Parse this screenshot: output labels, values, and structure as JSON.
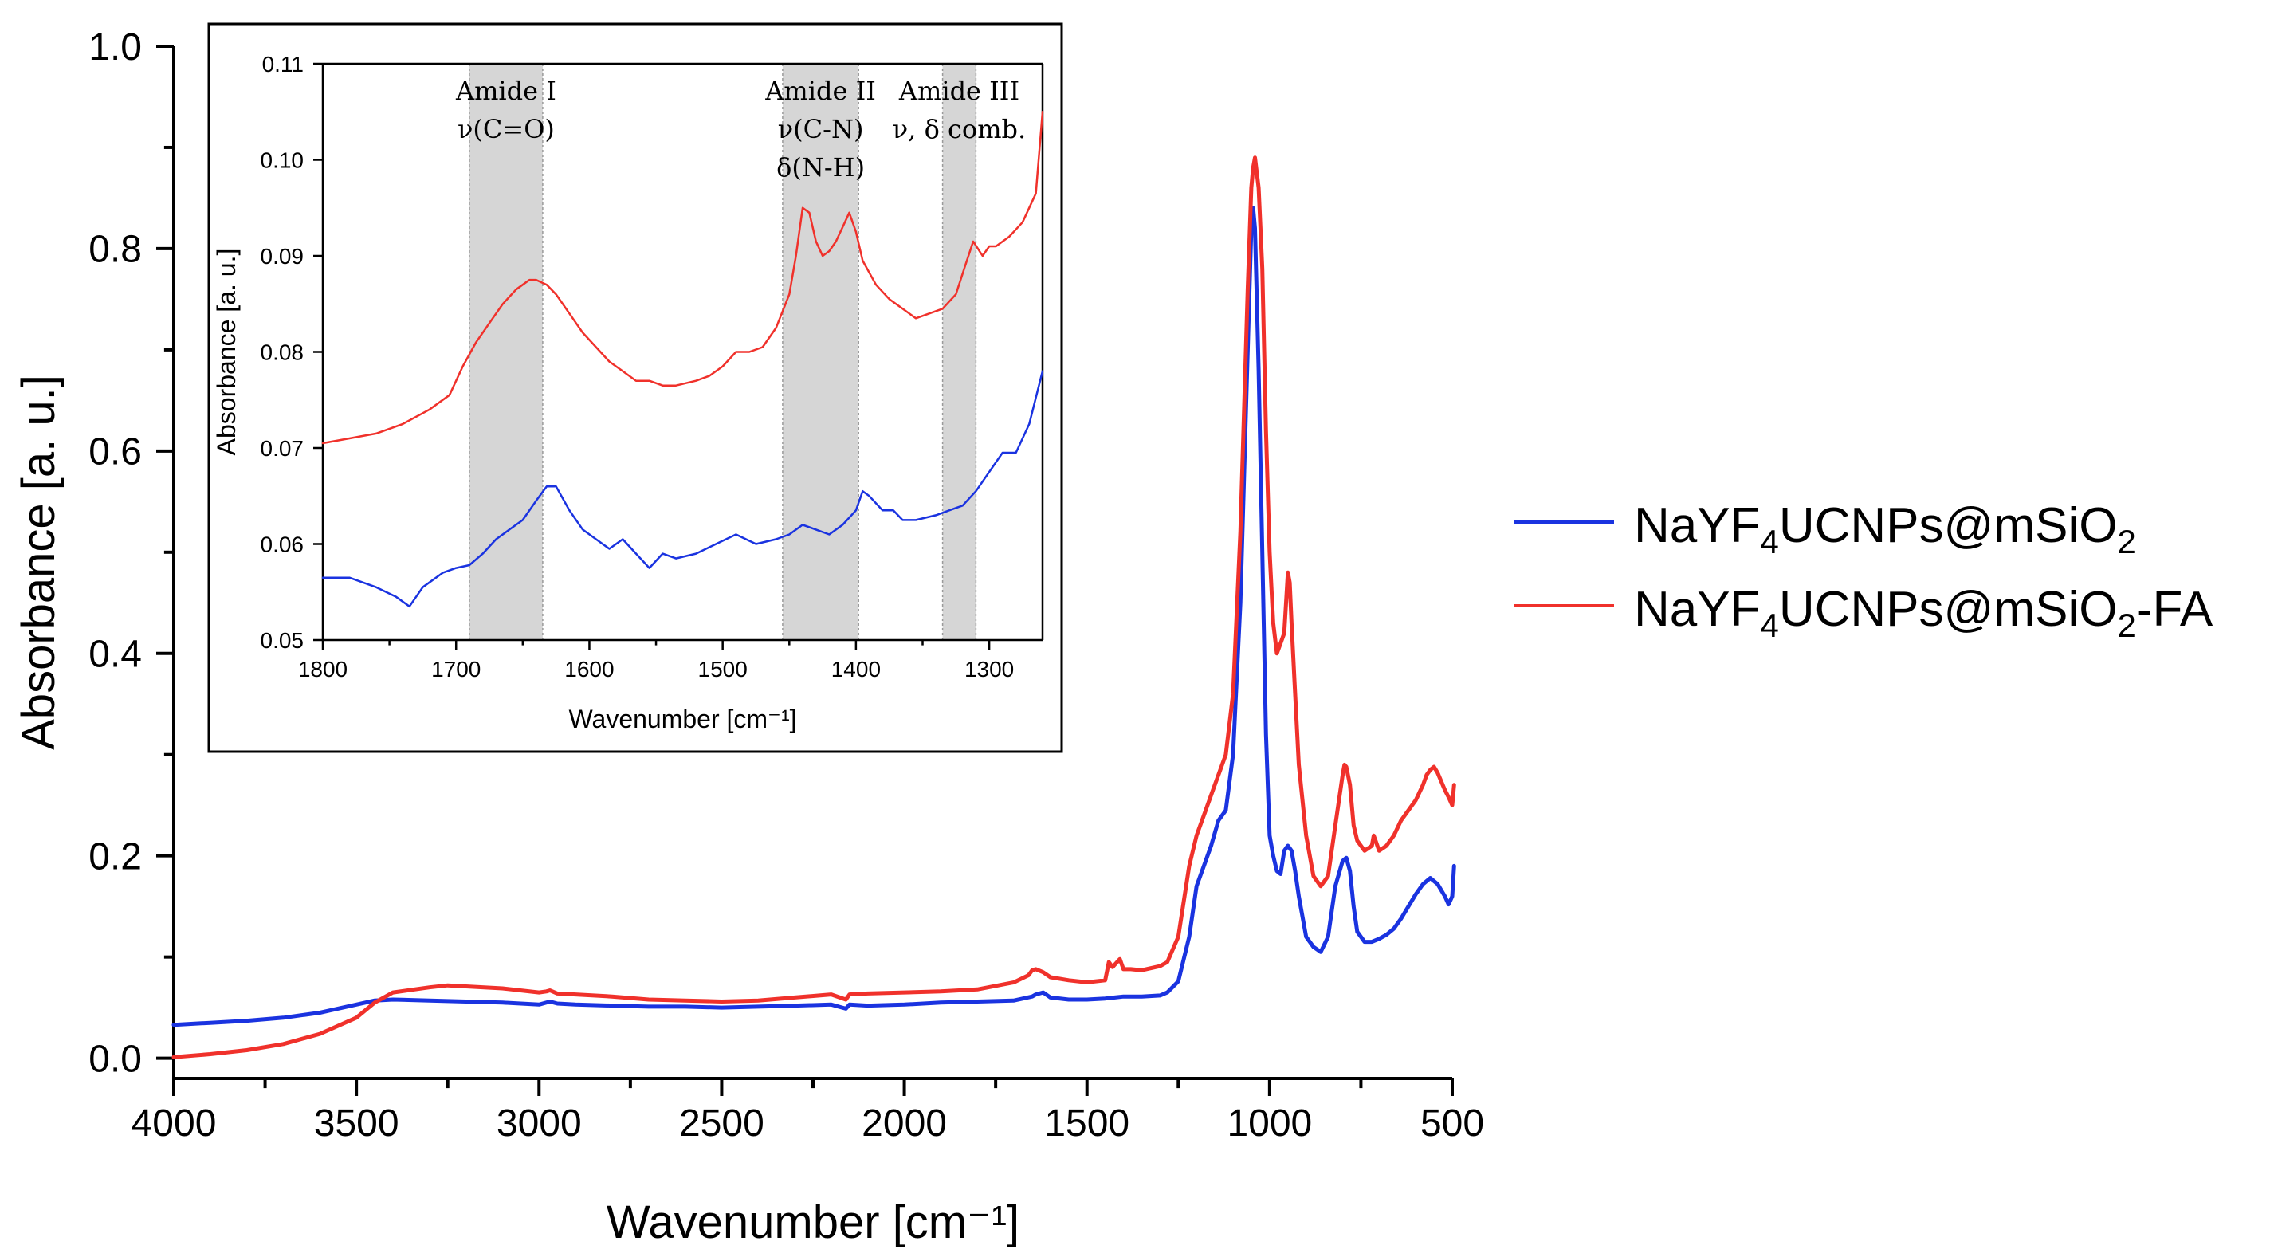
{
  "chart_data": [
    {
      "id": "main",
      "type": "line",
      "title": "",
      "xlabel": "Wavenumber [cm⁻¹]",
      "ylabel": "Absorbance [a. u.]",
      "xlim": [
        4000,
        500
      ],
      "ylim": [
        -0.02,
        1.0
      ],
      "x_reversed": true,
      "xticks": [
        "4000",
        "3500",
        "3000",
        "2500",
        "2000",
        "1500",
        "1000",
        "500"
      ],
      "xtick_values": [
        4000,
        3500,
        3000,
        2500,
        2000,
        1500,
        1000,
        500
      ],
      "yticks": [
        "0.0",
        "0.2",
        "0.4",
        "0.6",
        "0.8",
        "1.0"
      ],
      "ytick_values": [
        0.0,
        0.2,
        0.4,
        0.6,
        0.8,
        1.0
      ],
      "legend": {
        "placement": "right",
        "entries": [
          {
            "base": "NaYF",
            "sub1": "4",
            "mid": "UCNPs@mSiO",
            "sub2": "2",
            "suffix": ""
          },
          {
            "base": "NaYF",
            "sub1": "4",
            "mid": "UCNPs@mSiO",
            "sub2": "2",
            "suffix": "-FA"
          }
        ]
      },
      "series": [
        {
          "name": "NaYF4UCNPs@mSiO2",
          "color": "#1a33e0",
          "x": [
            4000,
            3900,
            3800,
            3700,
            3600,
            3500,
            3450,
            3400,
            3300,
            3200,
            3100,
            3000,
            2970,
            2950,
            2900,
            2800,
            2700,
            2600,
            2500,
            2400,
            2300,
            2200,
            2160,
            2150,
            2100,
            2000,
            1900,
            1800,
            1700,
            1650,
            1640,
            1620,
            1600,
            1550,
            1500,
            1450,
            1400,
            1350,
            1300,
            1280,
            1250,
            1220,
            1200,
            1180,
            1160,
            1140,
            1130,
            1120,
            1100,
            1080,
            1060,
            1050,
            1045,
            1040,
            1030,
            1020,
            1010,
            1000,
            990,
            980,
            970,
            960,
            950,
            940,
            930,
            920,
            900,
            880,
            860,
            840,
            820,
            800,
            790,
            780,
            770,
            760,
            740,
            720,
            700,
            680,
            660,
            640,
            620,
            600,
            580,
            560,
            540,
            520,
            510,
            500,
            495
          ],
          "y": [
            0.033,
            0.035,
            0.037,
            0.04,
            0.045,
            0.053,
            0.057,
            0.058,
            0.057,
            0.056,
            0.055,
            0.053,
            0.056,
            0.054,
            0.053,
            0.052,
            0.051,
            0.051,
            0.05,
            0.051,
            0.052,
            0.053,
            0.049,
            0.053,
            0.052,
            0.053,
            0.055,
            0.056,
            0.057,
            0.061,
            0.063,
            0.065,
            0.06,
            0.058,
            0.058,
            0.059,
            0.061,
            0.061,
            0.062,
            0.065,
            0.076,
            0.12,
            0.17,
            0.19,
            0.21,
            0.235,
            0.24,
            0.245,
            0.3,
            0.45,
            0.7,
            0.82,
            0.84,
            0.82,
            0.68,
            0.5,
            0.32,
            0.22,
            0.2,
            0.185,
            0.182,
            0.205,
            0.21,
            0.205,
            0.185,
            0.16,
            0.12,
            0.11,
            0.105,
            0.12,
            0.17,
            0.195,
            0.198,
            0.185,
            0.15,
            0.125,
            0.115,
            0.115,
            0.118,
            0.122,
            0.128,
            0.138,
            0.15,
            0.162,
            0.172,
            0.178,
            0.172,
            0.16,
            0.152,
            0.16,
            0.19
          ]
        },
        {
          "name": "NaYF4UCNPs@mSiO2-FA",
          "color": "#f0312b",
          "x": [
            4000,
            3900,
            3800,
            3700,
            3600,
            3500,
            3450,
            3400,
            3300,
            3250,
            3200,
            3100,
            3000,
            2980,
            2970,
            2950,
            2900,
            2800,
            2700,
            2600,
            2500,
            2400,
            2300,
            2200,
            2160,
            2150,
            2100,
            2000,
            1900,
            1800,
            1700,
            1660,
            1650,
            1640,
            1620,
            1600,
            1550,
            1500,
            1450,
            1440,
            1430,
            1410,
            1400,
            1380,
            1350,
            1300,
            1280,
            1250,
            1220,
            1200,
            1180,
            1160,
            1140,
            1130,
            1120,
            1100,
            1080,
            1060,
            1050,
            1045,
            1040,
            1030,
            1020,
            1010,
            1000,
            990,
            980,
            970,
            960,
            955,
            950,
            945,
            940,
            930,
            920,
            900,
            880,
            860,
            840,
            820,
            800,
            795,
            790,
            780,
            770,
            760,
            740,
            720,
            715,
            710,
            700,
            680,
            660,
            640,
            620,
            600,
            580,
            570,
            560,
            550,
            540,
            520,
            510,
            500,
            495
          ],
          "y": [
            0.001,
            0.004,
            0.008,
            0.014,
            0.024,
            0.04,
            0.055,
            0.065,
            0.07,
            0.072,
            0.071,
            0.069,
            0.065,
            0.066,
            0.067,
            0.064,
            0.063,
            0.061,
            0.058,
            0.057,
            0.056,
            0.057,
            0.06,
            0.063,
            0.058,
            0.063,
            0.064,
            0.065,
            0.066,
            0.068,
            0.075,
            0.082,
            0.087,
            0.088,
            0.085,
            0.08,
            0.077,
            0.075,
            0.077,
            0.095,
            0.09,
            0.098,
            0.088,
            0.088,
            0.087,
            0.091,
            0.095,
            0.12,
            0.19,
            0.22,
            0.24,
            0.26,
            0.28,
            0.29,
            0.3,
            0.36,
            0.52,
            0.76,
            0.86,
            0.88,
            0.89,
            0.86,
            0.78,
            0.62,
            0.5,
            0.43,
            0.4,
            0.41,
            0.42,
            0.45,
            0.48,
            0.47,
            0.43,
            0.36,
            0.29,
            0.22,
            0.18,
            0.17,
            0.18,
            0.23,
            0.28,
            0.29,
            0.288,
            0.27,
            0.23,
            0.215,
            0.205,
            0.21,
            0.22,
            0.215,
            0.205,
            0.21,
            0.22,
            0.235,
            0.245,
            0.255,
            0.27,
            0.28,
            0.285,
            0.288,
            0.282,
            0.265,
            0.258,
            0.25,
            0.27
          ]
        }
      ]
    },
    {
      "id": "inset",
      "type": "line",
      "title": "",
      "xlabel": "Wavenumber [cm⁻¹]",
      "ylabel": "Absorbance [a. u.]",
      "xlim": [
        1800,
        1260
      ],
      "ylim": [
        0.05,
        0.11
      ],
      "x_reversed": true,
      "xticks": [
        "1800",
        "1700",
        "1600",
        "1500",
        "1400",
        "1300"
      ],
      "xtick_values": [
        1800,
        1700,
        1600,
        1500,
        1400,
        1300
      ],
      "yticks": [
        "0.05",
        "0.06",
        "0.07",
        "0.08",
        "0.09",
        "0.10",
        "0.11"
      ],
      "ytick_values": [
        0.05,
        0.06,
        0.07,
        0.08,
        0.09,
        0.1,
        0.11
      ],
      "bands": [
        {
          "from": 1690,
          "to": 1635,
          "lines": [
            {
              "text": "Amide I"
            },
            {
              "text": "ν(C=O)"
            }
          ]
        },
        {
          "from": 1455,
          "to": 1398,
          "lines": [
            {
              "text": "Amide II"
            },
            {
              "text": "ν(C-N)"
            },
            {
              "text": "δ(N-H)"
            }
          ]
        },
        {
          "from": 1335,
          "to": 1310,
          "lines": [
            {
              "text": "Amide III"
            },
            {
              "text": "ν, δ comb."
            }
          ]
        }
      ],
      "series": [
        {
          "name": "NaYF4UCNPs@mSiO2",
          "color": "#1a33e0",
          "x": [
            1800,
            1780,
            1760,
            1745,
            1735,
            1725,
            1710,
            1700,
            1690,
            1680,
            1670,
            1660,
            1650,
            1640,
            1632,
            1625,
            1615,
            1605,
            1595,
            1585,
            1575,
            1565,
            1555,
            1545,
            1535,
            1520,
            1505,
            1490,
            1475,
            1460,
            1450,
            1440,
            1430,
            1420,
            1410,
            1400,
            1395,
            1390,
            1380,
            1372,
            1365,
            1355,
            1340,
            1330,
            1320,
            1310,
            1300,
            1290,
            1280,
            1270,
            1260
          ],
          "y": [
            0.0565,
            0.0565,
            0.0555,
            0.0545,
            0.0535,
            0.0555,
            0.057,
            0.0575,
            0.0578,
            0.059,
            0.0605,
            0.0615,
            0.0625,
            0.0645,
            0.066,
            0.066,
            0.0635,
            0.0615,
            0.0605,
            0.0595,
            0.0605,
            0.059,
            0.0575,
            0.059,
            0.0585,
            0.059,
            0.06,
            0.061,
            0.06,
            0.0605,
            0.061,
            0.062,
            0.0615,
            0.061,
            0.062,
            0.0635,
            0.0655,
            0.065,
            0.0635,
            0.0635,
            0.0625,
            0.0625,
            0.063,
            0.0635,
            0.064,
            0.0655,
            0.0675,
            0.0695,
            0.0695,
            0.0725,
            0.078
          ]
        },
        {
          "name": "NaYF4UCNPs@mSiO2-FA",
          "color": "#f0312b",
          "x": [
            1800,
            1780,
            1760,
            1740,
            1720,
            1705,
            1695,
            1685,
            1675,
            1665,
            1655,
            1650,
            1645,
            1640,
            1632,
            1625,
            1615,
            1605,
            1595,
            1585,
            1575,
            1565,
            1555,
            1545,
            1535,
            1520,
            1510,
            1500,
            1490,
            1480,
            1470,
            1460,
            1450,
            1445,
            1440,
            1435,
            1430,
            1425,
            1420,
            1415,
            1410,
            1405,
            1400,
            1395,
            1385,
            1375,
            1365,
            1355,
            1345,
            1335,
            1325,
            1318,
            1312,
            1305,
            1300,
            1295,
            1285,
            1275,
            1265,
            1260
          ],
          "y": [
            0.0705,
            0.071,
            0.0715,
            0.0725,
            0.074,
            0.0755,
            0.0785,
            0.081,
            0.083,
            0.085,
            0.0865,
            0.087,
            0.0875,
            0.0875,
            0.087,
            0.086,
            0.084,
            0.082,
            0.0805,
            0.079,
            0.078,
            0.077,
            0.077,
            0.0765,
            0.0765,
            0.077,
            0.0775,
            0.0785,
            0.08,
            0.08,
            0.0805,
            0.0825,
            0.086,
            0.09,
            0.095,
            0.0945,
            0.0915,
            0.09,
            0.0905,
            0.0915,
            0.093,
            0.0945,
            0.0925,
            0.0895,
            0.087,
            0.0855,
            0.0845,
            0.0835,
            0.084,
            0.0845,
            0.086,
            0.089,
            0.0915,
            0.09,
            0.091,
            0.091,
            0.092,
            0.0935,
            0.0965,
            0.105
          ]
        }
      ]
    }
  ]
}
